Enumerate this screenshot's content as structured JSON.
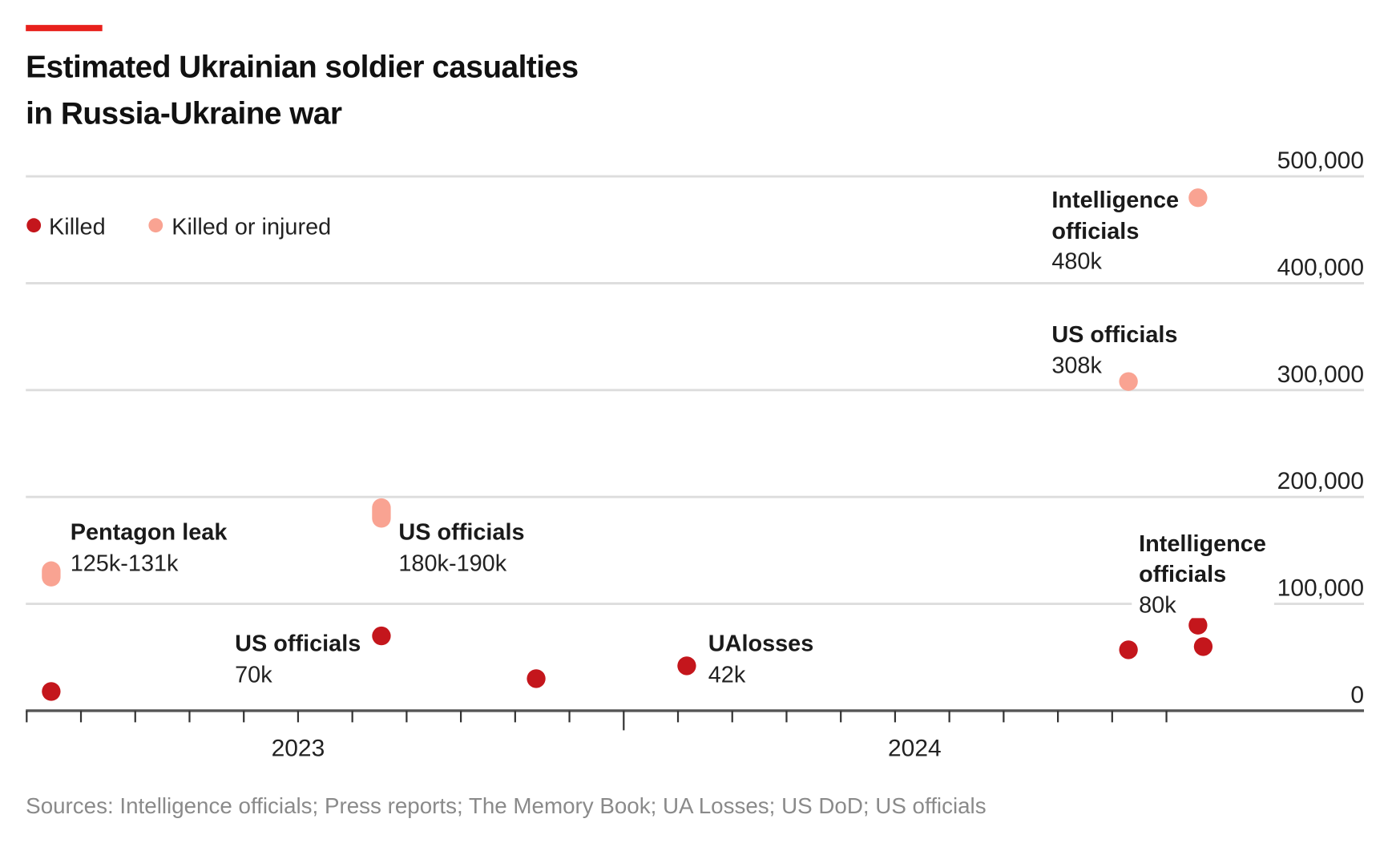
{
  "colors": {
    "accent": "#e8211c",
    "killed": "#c4161c",
    "killed_or_injured": "#f9a392",
    "grid": "#dddddd",
    "axis": "#555555"
  },
  "chart_data": {
    "type": "scatter",
    "title": "Estimated Ukrainian soldier casualties in Russia-Ukraine war",
    "title_lines": [
      "Estimated Ukrainian soldier casualties",
      "in Russia-Ukraine war"
    ],
    "ylim": [
      0,
      500000
    ],
    "y_ticks": [
      "0",
      "100,000",
      "200,000",
      "300,000",
      "400,000",
      "500,000"
    ],
    "y_tick_values": [
      0,
      100000,
      200000,
      300000,
      400000,
      500000
    ],
    "x_ticks": [
      "2023",
      "2024"
    ],
    "xlim": [
      "2022-08-01",
      "2024-09-15"
    ],
    "grid": true,
    "legend": {
      "placement": "top-left",
      "items": [
        "Killed",
        "Killed or injured"
      ]
    },
    "series": [
      {
        "name": "Killed",
        "points": [
          {
            "date": "2022-08-15",
            "value": 18000
          },
          {
            "date": "2023-02-16",
            "value": 70000,
            "source": "US officials",
            "label": "70k"
          },
          {
            "date": "2023-05-13",
            "value": 30000
          },
          {
            "date": "2023-08-06",
            "value": 42000,
            "source": "UAlosses",
            "label": "42k"
          },
          {
            "date": "2024-04-10",
            "value": 57000
          },
          {
            "date": "2024-05-19",
            "value": 80000,
            "source": "Intelligence officials",
            "label": "80k"
          },
          {
            "date": "2024-05-22",
            "value": 60000
          }
        ]
      },
      {
        "name": "Killed or injured",
        "points": [
          {
            "date": "2022-08-15",
            "low": 125000,
            "high": 131000,
            "source": "Pentagon leak",
            "label": "125k-131k"
          },
          {
            "date": "2023-02-16",
            "low": 180000,
            "high": 190000,
            "source": "US officials",
            "label": "180k-190k"
          },
          {
            "date": "2024-04-10",
            "value": 308000,
            "source": "US officials",
            "label": "308k"
          },
          {
            "date": "2024-05-19",
            "value": 480000,
            "source": "Intelligence officials",
            "label": "480k"
          }
        ]
      }
    ],
    "annotations": [
      {
        "lines": [
          "Pentagon leak"
        ],
        "value": "125k-131k"
      },
      {
        "lines": [
          "US officials"
        ],
        "value": "180k-190k"
      },
      {
        "lines": [
          "US officials"
        ],
        "value": "70k"
      },
      {
        "lines": [
          "UAlosses"
        ],
        "value": "42k"
      },
      {
        "lines": [
          "Intelligence",
          "officials"
        ],
        "value": "80k"
      },
      {
        "lines": [
          "US officials"
        ],
        "value": "308k"
      },
      {
        "lines": [
          "Intelligence",
          "officials"
        ],
        "value": "480k"
      }
    ],
    "source": "Sources: Intelligence officials; Press reports; The Memory Book; UA Losses; US DoD; US officials"
  }
}
